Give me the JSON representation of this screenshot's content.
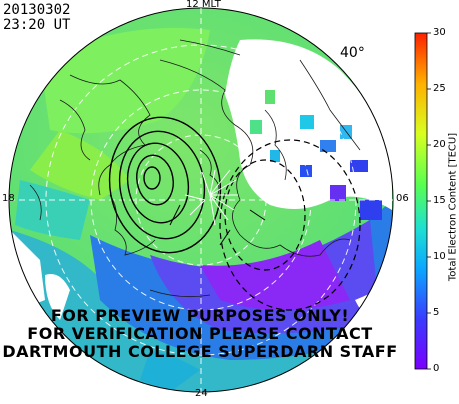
{
  "header": {
    "date": "20130302",
    "time": "23:20 UT"
  },
  "map": {
    "lat_label": "40°",
    "mlt_labels": {
      "top": "12 MLT",
      "left": "18",
      "right": "06",
      "bottom": "24"
    }
  },
  "watermark": {
    "line1": "FOR PREVIEW PURPOSES ONLY!",
    "line2": "FOR VERIFICATION PLEASE CONTACT",
    "line3": "DARTMOUTH COLLEGE SUPERDARN STAFF"
  },
  "colorbar": {
    "title": "Total Electron Content [TECU]",
    "ticks": [
      "0",
      "5",
      "10",
      "15",
      "20",
      "25",
      "30"
    ],
    "colors": [
      "#7a00ff",
      "#3a3cff",
      "#0aa8ff",
      "#20e0d0",
      "#58ff50",
      "#d8ff20",
      "#ffb000",
      "#ff2000"
    ]
  }
}
